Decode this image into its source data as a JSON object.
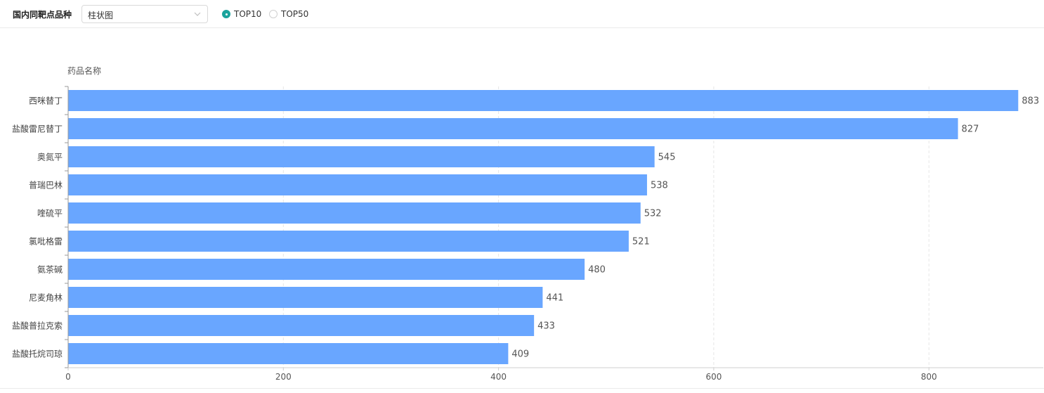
{
  "toolbar": {
    "title": "国内同靶点品种",
    "chart_type_select": "柱状图",
    "radios": [
      {
        "label": "TOP10",
        "checked": true
      },
      {
        "label": "TOP50",
        "checked": false
      }
    ]
  },
  "colors": {
    "bar": "#69a6ff",
    "accent": "#1ba39c"
  },
  "chart_data": {
    "type": "bar",
    "orientation": "horizontal",
    "ylabel": "药品名称",
    "xlabel": "",
    "categories": [
      "西咪替丁",
      "盐酸雷尼替丁",
      "奥氮平",
      "普瑞巴林",
      "喹硫平",
      "氯吡格雷",
      "氨茶碱",
      "尼麦角林",
      "盐酸普拉克索",
      "盐酸托烷司琼"
    ],
    "values": [
      883,
      827,
      545,
      538,
      532,
      521,
      480,
      441,
      433,
      409
    ],
    "xlim": [
      0,
      906
    ],
    "xticks": [
      0,
      200,
      400,
      600,
      800
    ],
    "grid": true,
    "data_labels": true
  }
}
